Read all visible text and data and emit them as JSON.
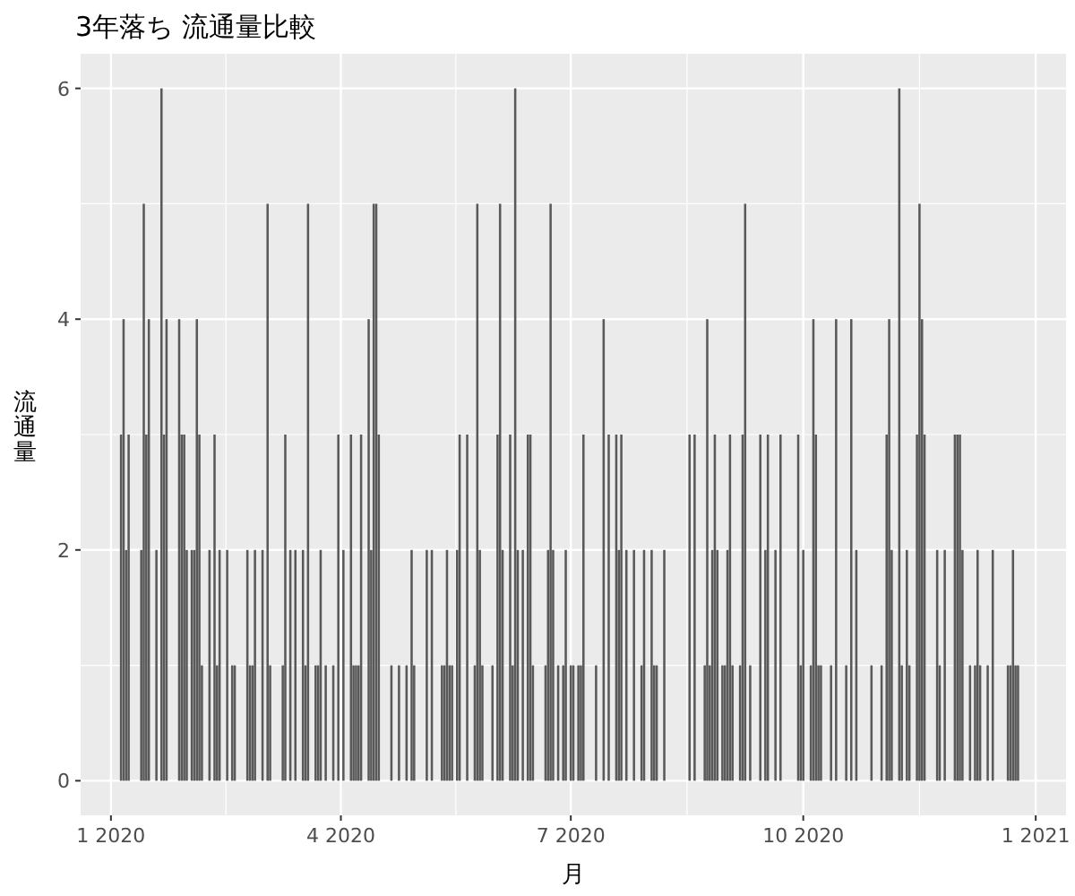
{
  "chart_data": {
    "type": "bar",
    "title": "3年落ち 流通量比較",
    "xlabel": "月",
    "ylabel": "流通量",
    "x": [
      "2020-01-05",
      "2020-01-06",
      "2020-01-07",
      "2020-01-08",
      "2020-01-13",
      "2020-01-14",
      "2020-01-15",
      "2020-01-16",
      "2020-01-19",
      "2020-01-21",
      "2020-01-22",
      "2020-01-23",
      "2020-01-28",
      "2020-01-29",
      "2020-01-30",
      "2020-01-31",
      "2020-02-02",
      "2020-02-03",
      "2020-02-04",
      "2020-02-05",
      "2020-02-06",
      "2020-02-09",
      "2020-02-11",
      "2020-02-12",
      "2020-02-13",
      "2020-02-16",
      "2020-02-18",
      "2020-02-19",
      "2020-02-24",
      "2020-02-25",
      "2020-02-26",
      "2020-02-27",
      "2020-03-01",
      "2020-03-03",
      "2020-03-04",
      "2020-03-09",
      "2020-03-10",
      "2020-03-12",
      "2020-03-14",
      "2020-03-17",
      "2020-03-18",
      "2020-03-19",
      "2020-03-22",
      "2020-03-23",
      "2020-03-24",
      "2020-03-26",
      "2020-03-29",
      "2020-03-31",
      "2020-04-02",
      "2020-04-05",
      "2020-04-06",
      "2020-04-07",
      "2020-04-08",
      "2020-04-09",
      "2020-04-12",
      "2020-04-13",
      "2020-04-14",
      "2020-04-15",
      "2020-04-16",
      "2020-04-21",
      "2020-04-24",
      "2020-04-27",
      "2020-04-29",
      "2020-04-30",
      "2020-05-05",
      "2020-05-07",
      "2020-05-11",
      "2020-05-12",
      "2020-05-13",
      "2020-05-14",
      "2020-05-15",
      "2020-05-17",
      "2020-05-18",
      "2020-05-21",
      "2020-05-24",
      "2020-05-25",
      "2020-05-26",
      "2020-05-27",
      "2020-05-31",
      "2020-06-02",
      "2020-06-03",
      "2020-06-04",
      "2020-06-07",
      "2020-06-08",
      "2020-06-09",
      "2020-06-10",
      "2020-06-12",
      "2020-06-14",
      "2020-06-15",
      "2020-06-16",
      "2020-06-21",
      "2020-06-22",
      "2020-06-23",
      "2020-06-24",
      "2020-06-26",
      "2020-06-28",
      "2020-06-29",
      "2020-07-01",
      "2020-07-02",
      "2020-07-04",
      "2020-07-05",
      "2020-07-06",
      "2020-07-11",
      "2020-07-14",
      "2020-07-16",
      "2020-07-19",
      "2020-07-20",
      "2020-07-21",
      "2020-07-23",
      "2020-07-26",
      "2020-07-29",
      "2020-07-30",
      "2020-08-02",
      "2020-08-03",
      "2020-08-04",
      "2020-08-07",
      "2020-08-17",
      "2020-08-19",
      "2020-08-23",
      "2020-08-24",
      "2020-08-25",
      "2020-08-26",
      "2020-08-27",
      "2020-08-28",
      "2020-08-30",
      "2020-08-31",
      "2020-09-01",
      "2020-09-02",
      "2020-09-03",
      "2020-09-06",
      "2020-09-07",
      "2020-09-08",
      "2020-09-10",
      "2020-09-14",
      "2020-09-16",
      "2020-09-17",
      "2020-09-20",
      "2020-09-22",
      "2020-09-29",
      "2020-09-30",
      "2020-10-01",
      "2020-10-04",
      "2020-10-05",
      "2020-10-06",
      "2020-10-07",
      "2020-10-08",
      "2020-10-12",
      "2020-10-14",
      "2020-10-18",
      "2020-10-20",
      "2020-10-22",
      "2020-10-28",
      "2020-11-01",
      "2020-11-03",
      "2020-11-04",
      "2020-11-05",
      "2020-11-08",
      "2020-11-09",
      "2020-11-11",
      "2020-11-12",
      "2020-11-15",
      "2020-11-16",
      "2020-11-17",
      "2020-11-18",
      "2020-11-23",
      "2020-11-24",
      "2020-11-26",
      "2020-11-30",
      "2020-12-01",
      "2020-12-02",
      "2020-12-03",
      "2020-12-06",
      "2020-12-08",
      "2020-12-09",
      "2020-12-10",
      "2020-12-13",
      "2020-12-15",
      "2020-12-21",
      "2020-12-22",
      "2020-12-23",
      "2020-12-24",
      "2020-12-25"
    ],
    "values": [
      3,
      4,
      2,
      3,
      2,
      5,
      3,
      4,
      2,
      6,
      3,
      4,
      4,
      3,
      3,
      2,
      2,
      2,
      4,
      3,
      1,
      2,
      3,
      1,
      2,
      2,
      1,
      1,
      2,
      1,
      1,
      2,
      2,
      5,
      1,
      1,
      3,
      2,
      2,
      2,
      1,
      5,
      1,
      1,
      2,
      1,
      1,
      3,
      2,
      3,
      1,
      1,
      1,
      3,
      4,
      2,
      5,
      5,
      3,
      1,
      1,
      1,
      2,
      1,
      2,
      2,
      1,
      1,
      2,
      1,
      1,
      2,
      3,
      3,
      1,
      5,
      2,
      1,
      1,
      3,
      5,
      2,
      3,
      1,
      6,
      2,
      2,
      3,
      3,
      1,
      1,
      2,
      5,
      2,
      1,
      1,
      2,
      1,
      1,
      1,
      1,
      3,
      1,
      4,
      3,
      3,
      2,
      3,
      2,
      2,
      1,
      2,
      2,
      1,
      1,
      2,
      3,
      3,
      1,
      4,
      1,
      2,
      3,
      2,
      1,
      1,
      2,
      3,
      1,
      1,
      3,
      5,
      1,
      3,
      2,
      3,
      2,
      3,
      3,
      1,
      2,
      1,
      4,
      3,
      1,
      1,
      1,
      4,
      1,
      4,
      2,
      1,
      1,
      3,
      4,
      2,
      6,
      1,
      2,
      1,
      3,
      5,
      4,
      3,
      2,
      1,
      2,
      3,
      3,
      3,
      2,
      1,
      1,
      2,
      1,
      1,
      2,
      1,
      1,
      2,
      1,
      1
    ],
    "color": "#595959",
    "xlim": [
      "2019-12-20",
      "2021-01-13"
    ],
    "xticks": [
      {
        "value": "2020-01-01",
        "label": "1 2020"
      },
      {
        "value": "2020-04-01",
        "label": "4 2020"
      },
      {
        "value": "2020-07-01",
        "label": "7 2020"
      },
      {
        "value": "2020-10-01",
        "label": "10 2020"
      },
      {
        "value": "2021-01-01",
        "label": "1 2021"
      }
    ],
    "ylim": [
      -0.3,
      6.3
    ],
    "yticks": [
      0,
      2,
      4,
      6
    ],
    "grid": true
  }
}
